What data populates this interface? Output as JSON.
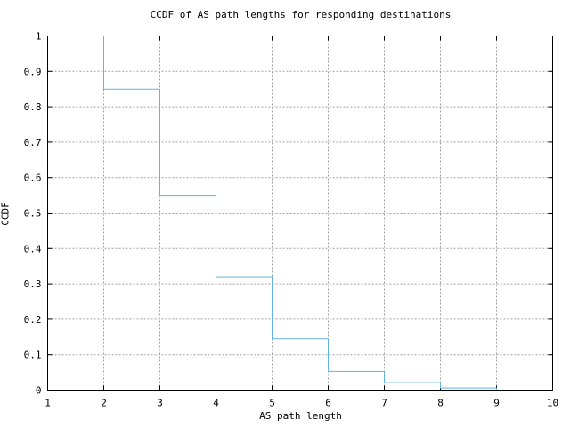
{
  "chart_data": {
    "type": "line",
    "subtype": "ccdf-step",
    "title": "CCDF of AS path lengths for responding destinations",
    "xlabel": "AS path length",
    "ylabel": "CCDF",
    "xlim": [
      1,
      10
    ],
    "ylim": [
      0,
      1
    ],
    "x_ticks": [
      1,
      2,
      3,
      4,
      5,
      6,
      7,
      8,
      9,
      10
    ],
    "y_ticks": [
      0,
      0.1,
      0.2,
      0.3,
      0.4,
      0.5,
      0.6,
      0.7,
      0.8,
      0.9,
      1
    ],
    "x_tick_labels": [
      "1",
      "2",
      "3",
      "4",
      "5",
      "6",
      "7",
      "8",
      "9",
      "10"
    ],
    "y_tick_labels": [
      "0",
      "0.1",
      "0.2",
      "0.3",
      "0.4",
      "0.5",
      "0.6",
      "0.7",
      "0.8",
      "0.9",
      "1"
    ],
    "grid": true,
    "legend": false,
    "colors": {
      "line": "#63b3dd",
      "grid": "#a0a0a0",
      "axis": "#000000",
      "background": "#ffffff"
    },
    "series": [
      {
        "name": "CCDF",
        "start": {
          "x": 2,
          "y": 1.0
        },
        "steps": [
          {
            "x": 2,
            "y": 0.85
          },
          {
            "x": 3,
            "y": 0.55
          },
          {
            "x": 4,
            "y": 0.32
          },
          {
            "x": 5,
            "y": 0.145
          },
          {
            "x": 6,
            "y": 0.053
          },
          {
            "x": 7,
            "y": 0.021
          },
          {
            "x": 8,
            "y": 0.006
          },
          {
            "x": 9,
            "y": 0.0
          }
        ]
      }
    ]
  }
}
